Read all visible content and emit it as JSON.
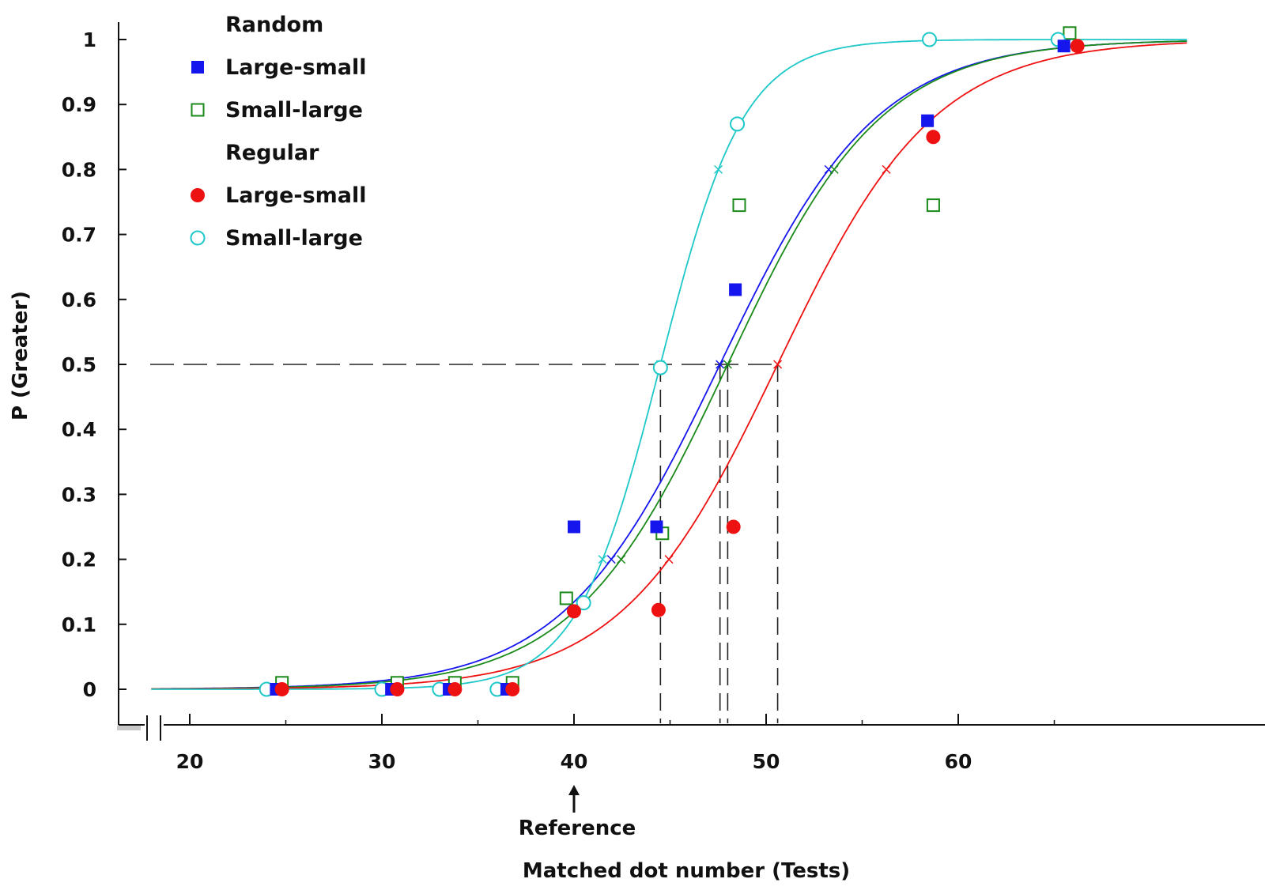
{
  "chart_data": {
    "type": "scatter",
    "xlabel": "Matched dot number (Tests)",
    "ylabel": "P (Greater)",
    "annotation": "Reference",
    "annotation_x": 40,
    "reference_line_y": 0.5,
    "x_ticks": [
      {
        "value": 20,
        "label": "20"
      },
      {
        "value": 30,
        "label": "30"
      },
      {
        "value": 40,
        "label": "40"
      },
      {
        "value": 50,
        "label": "50"
      },
      {
        "value": 60,
        "label": "60"
      }
    ],
    "y_ticks": [
      {
        "value": 0,
        "label": "0"
      },
      {
        "value": 0.1,
        "label": "0.1"
      },
      {
        "value": 0.2,
        "label": "0.2"
      },
      {
        "value": 0.3,
        "label": "0.3"
      },
      {
        "value": 0.4,
        "label": "0.4"
      },
      {
        "value": 0.5,
        "label": "0.5"
      },
      {
        "value": 0.6,
        "label": "0.6"
      },
      {
        "value": 0.7,
        "label": "0.7"
      },
      {
        "value": 0.8,
        "label": "0.8"
      },
      {
        "value": 0.9,
        "label": "0.9"
      },
      {
        "value": 1,
        "label": "1"
      }
    ],
    "legend": [
      {
        "kind": "heading",
        "label": "Random"
      },
      {
        "kind": "series",
        "series": 0,
        "label": "Large-small"
      },
      {
        "kind": "series",
        "series": 1,
        "label": "Small-large"
      },
      {
        "kind": "heading",
        "label": "Regular"
      },
      {
        "kind": "series",
        "series": 2,
        "label": "Large-small"
      },
      {
        "kind": "series",
        "series": 3,
        "label": "Small-large"
      }
    ],
    "series": [
      {
        "name": "Random Large-small",
        "color": "#1515ee",
        "marker": "filled-square",
        "x": [
          24.5,
          30.5,
          33.5,
          36.5,
          40,
          44.3,
          48.4,
          58.4,
          65.5
        ],
        "y": [
          0,
          0,
          0,
          0,
          0.25,
          0.25,
          0.615,
          0.875,
          0.99
        ],
        "fit": {
          "pse": 47.6,
          "slope": 0.245
        },
        "crosses": [
          0.2,
          0.5,
          0.8
        ]
      },
      {
        "name": "Random Small-large",
        "color": "#1a8a1a",
        "marker": "open-square",
        "x": [
          24.8,
          30.8,
          33.8,
          36.8,
          39.6,
          44.6,
          48.6,
          58.7,
          65.8
        ],
        "y": [
          0.01,
          0.01,
          0.01,
          0.01,
          0.14,
          0.24,
          0.745,
          0.745,
          1.01
        ],
        "fit": {
          "pse": 48.0,
          "slope": 0.25
        },
        "crosses": [
          0.2,
          0.5,
          0.8
        ]
      },
      {
        "name": "Regular Large-small",
        "color": "#ee1111",
        "marker": "filled-circle",
        "x": [
          24.8,
          30.8,
          33.8,
          36.8,
          40,
          44.4,
          48.3,
          58.7,
          66.2
        ],
        "y": [
          0,
          0,
          0,
          0,
          0.12,
          0.122,
          0.25,
          0.85,
          0.99
        ],
        "fit": {
          "pse": 50.6,
          "slope": 0.245
        },
        "crosses": [
          0.2,
          0.5,
          0.8
        ]
      },
      {
        "name": "Regular Small-large",
        "color": "#1ec8c8",
        "marker": "open-circle",
        "x": [
          24,
          30,
          33,
          36,
          40.5,
          44.5,
          48.5,
          58.5,
          65.2
        ],
        "y": [
          0,
          0,
          0,
          0,
          0.133,
          0.495,
          0.87,
          1,
          1
        ],
        "fit": {
          "pse": 44.5,
          "slope": 0.46
        },
        "crosses": [
          0.2,
          0.5,
          0.8
        ]
      }
    ]
  }
}
